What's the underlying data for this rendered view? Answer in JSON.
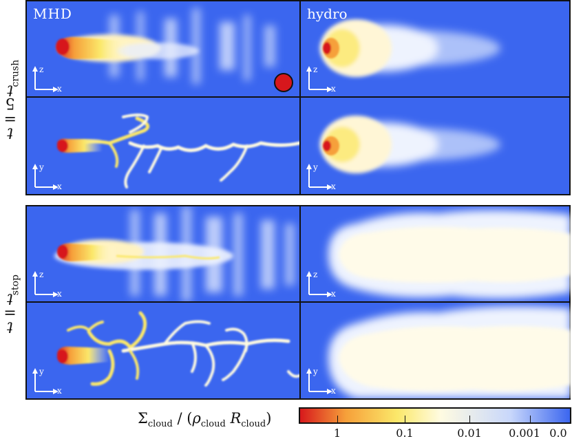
{
  "row_labels": [
    {
      "var": "t",
      "eq": "=",
      "coef": "5",
      "sym": "t",
      "sub": "crush"
    },
    {
      "var": "t",
      "eq": "=",
      "sym": "t",
      "sub": "stop"
    }
  ],
  "columns": [
    "MHD",
    "hydro"
  ],
  "axis_labels": {
    "xz": {
      "vertical": "z",
      "horizontal": "x"
    },
    "xy": {
      "vertical": "y",
      "horizontal": "x"
    }
  },
  "colorbar": {
    "sym": "Σ",
    "sym_sub": "cloud",
    "rho": "ρ",
    "rho_sub": "cloud",
    "R": "R",
    "R_sub": "cloud",
    "ticks": [
      "1",
      "0.1",
      "0.01",
      "0.001",
      "0.0"
    ],
    "colors": [
      "#d7191c",
      "#f6a03a",
      "#fbe86a",
      "#fffbe1",
      "#c8d7fb",
      "#3b66ef"
    ]
  },
  "background_color": "#3b66ef",
  "cloud_marker_color": "#d7171c"
}
